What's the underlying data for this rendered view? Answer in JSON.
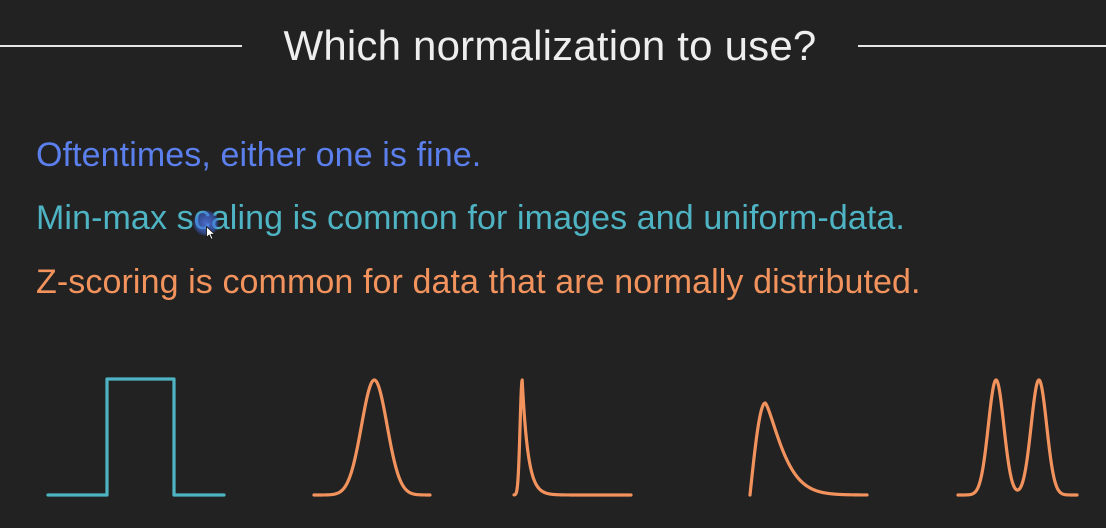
{
  "slide": {
    "title": "Which normalization to use?",
    "lines": [
      {
        "text": "Oftentimes, either one is fine.",
        "color": "#5b7fec"
      },
      {
        "text": "Min-max scaling is common for images and uniform-data.",
        "color": "#4eb4c4"
      },
      {
        "text": "Z-scoring is common for data that are normally distributed.",
        "color": "#f2935e"
      }
    ]
  },
  "illustrations": [
    {
      "icon": "uniform-distribution-curve-icon",
      "color": "#4eb4c4"
    },
    {
      "icon": "normal-distribution-curve-icon",
      "color": "#f2935e"
    },
    {
      "icon": "skewed-spike-curve-icon",
      "color": "#f2935e"
    },
    {
      "icon": "right-skewed-curve-icon",
      "color": "#f2935e"
    },
    {
      "icon": "bimodal-curve-icon",
      "color": "#f2935e"
    }
  ],
  "colors": {
    "background": "#222222",
    "title_text": "#eeeeee",
    "title_rule": "#e6e6e6",
    "cursor": "#4a6fd8"
  }
}
